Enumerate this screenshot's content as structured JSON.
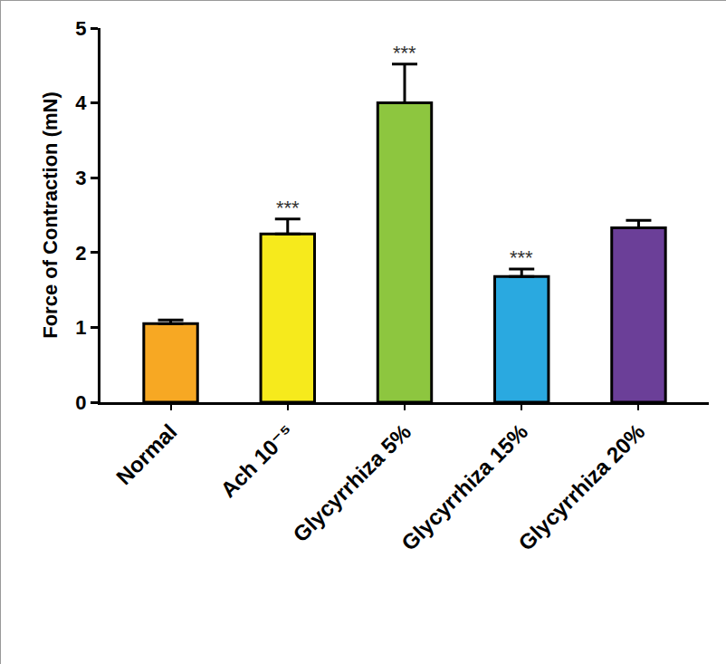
{
  "chart_data": {
    "type": "bar",
    "y_label": "Force of Contraction (mN)",
    "categories": [
      "Normal",
      "Ach 10⁻⁵",
      "Glycyrrhiza 5%",
      "Glycyrrhiza 15%",
      "Glycyrrhiza 20%"
    ],
    "values": [
      1.05,
      2.25,
      4.0,
      1.68,
      2.33
    ],
    "errors": [
      0.05,
      0.2,
      0.52,
      0.1,
      0.1
    ],
    "significance": [
      null,
      "***",
      "***",
      "***",
      null
    ],
    "colors": [
      "#f7a823",
      "#f6ea1c",
      "#8dc63f",
      "#2aa9e0",
      "#6b3f98"
    ],
    "ylim": [
      0,
      5
    ],
    "yticks": [
      0,
      1,
      2,
      3,
      4,
      5
    ],
    "grid": false
  }
}
